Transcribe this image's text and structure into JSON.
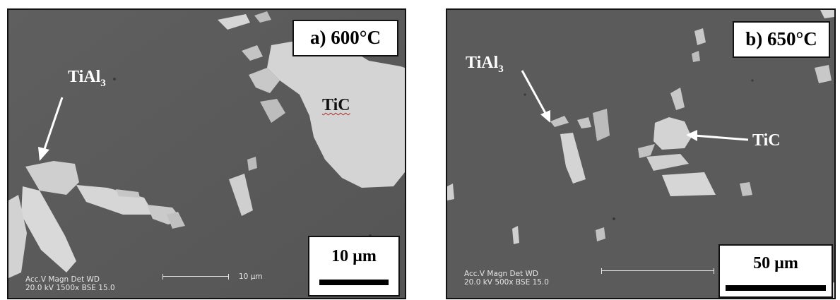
{
  "panels": [
    {
      "label": "a) 600°C",
      "scale": "10 µm",
      "annotations": {
        "tial3_base": "TiAl",
        "tial3_sub": "3",
        "tic": "TiC"
      },
      "instrument": {
        "line1": "Acc.V  Magn    Det  WD",
        "line2": "20.0 kV 1500x   BSE  15.0",
        "scale_label": "10 µm"
      }
    },
    {
      "label": "b) 650°C",
      "scale": "50 µm",
      "annotations": {
        "tial3_base": "TiAl",
        "tial3_sub": "3",
        "tic": "TiC"
      },
      "instrument": {
        "line1": "Acc.V  Magn    Det  WD",
        "line2": "20.0 kV 500x    BSE  15.0"
      }
    }
  ],
  "colors": {
    "matrix": "#5a5a5a",
    "particle": "#d6d6d6",
    "frame": "#111111"
  }
}
